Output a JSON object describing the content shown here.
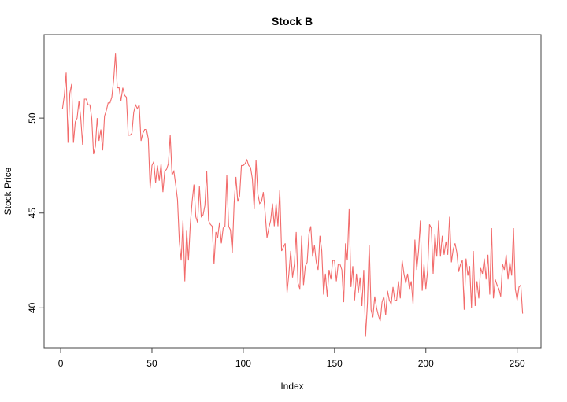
{
  "chart_data": {
    "type": "line",
    "title": "Stock B",
    "x_label": "Index",
    "y_label": "Stock Price",
    "color": "#f26b6b",
    "xlim": [
      -9.08,
      263.08
    ],
    "xticks": [
      0,
      50,
      100,
      150,
      200,
      250
    ],
    "ylim": [
      37.9,
      54.4
    ],
    "yticks": [
      40,
      45,
      50
    ],
    "x": [
      1,
      2,
      3,
      4,
      5,
      6,
      7,
      8,
      9,
      10,
      11,
      12,
      13,
      14,
      15,
      16,
      17,
      18,
      19,
      20,
      21,
      22,
      23,
      24,
      25,
      26,
      27,
      28,
      29,
      30,
      31,
      32,
      33,
      34,
      35,
      36,
      37,
      38,
      39,
      40,
      41,
      42,
      43,
      44,
      45,
      46,
      47,
      48,
      49,
      50,
      51,
      52,
      53,
      54,
      55,
      56,
      57,
      58,
      59,
      60,
      61,
      62,
      63,
      64,
      65,
      66,
      67,
      68,
      69,
      70,
      71,
      72,
      73,
      74,
      75,
      76,
      77,
      78,
      79,
      80,
      81,
      82,
      83,
      84,
      85,
      86,
      87,
      88,
      89,
      90,
      91,
      92,
      93,
      94,
      95,
      96,
      97,
      98,
      99,
      100,
      101,
      102,
      103,
      104,
      105,
      106,
      107,
      108,
      109,
      110,
      111,
      112,
      113,
      114,
      115,
      116,
      117,
      118,
      119,
      120,
      121,
      122,
      123,
      124,
      125,
      126,
      127,
      128,
      129,
      130,
      131,
      132,
      133,
      134,
      135,
      136,
      137,
      138,
      139,
      140,
      141,
      142,
      143,
      144,
      145,
      146,
      147,
      148,
      149,
      150,
      151,
      152,
      153,
      154,
      155,
      156,
      157,
      158,
      159,
      160,
      161,
      162,
      163,
      164,
      165,
      166,
      167,
      168,
      169,
      170,
      171,
      172,
      173,
      174,
      175,
      176,
      177,
      178,
      179,
      180,
      181,
      182,
      183,
      184,
      185,
      186,
      187,
      188,
      189,
      190,
      191,
      192,
      193,
      194,
      195,
      196,
      197,
      198,
      199,
      200,
      201,
      202,
      203,
      204,
      205,
      206,
      207,
      208,
      209,
      210,
      211,
      212,
      213,
      214,
      215,
      216,
      217,
      218,
      219,
      220,
      221,
      222,
      223,
      224,
      225,
      226,
      227,
      228,
      229,
      230,
      231,
      232,
      233,
      234,
      235,
      236,
      237,
      238,
      239,
      240,
      241,
      242,
      243,
      244,
      245,
      246,
      247,
      248,
      249,
      250,
      251,
      252,
      253
    ],
    "values": [
      50.5,
      51.2,
      52.4,
      48.7,
      51.3,
      51.8,
      48.7,
      49.8,
      50.0,
      50.9,
      50.0,
      48.6,
      51.0,
      51.0,
      50.7,
      50.7,
      50.0,
      48.1,
      48.5,
      50.0,
      48.8,
      49.4,
      48.3,
      50.1,
      50.4,
      50.8,
      50.8,
      51.1,
      52.0,
      53.4,
      51.6,
      51.6,
      50.9,
      51.6,
      51.2,
      51.1,
      49.1,
      49.1,
      49.2,
      50.3,
      50.7,
      50.5,
      50.7,
      48.8,
      49.2,
      49.4,
      49.4,
      48.9,
      46.3,
      47.5,
      47.7,
      46.6,
      47.5,
      46.7,
      47.6,
      46.1,
      47.2,
      47.3,
      47.6,
      49.1,
      47.0,
      47.2,
      46.5,
      45.7,
      43.5,
      42.5,
      44.6,
      41.4,
      44.1,
      42.5,
      44.4,
      45.6,
      46.5,
      44.8,
      44.5,
      46.4,
      44.8,
      44.9,
      45.4,
      47.2,
      44.6,
      44.4,
      44.3,
      42.3,
      44.0,
      43.7,
      44.5,
      43.4,
      44.2,
      44.3,
      47.0,
      44.3,
      44.1,
      42.9,
      45.5,
      46.9,
      45.6,
      45.9,
      47.5,
      47.5,
      47.6,
      47.8,
      47.5,
      47.4,
      46.8,
      45.2,
      47.8,
      46.0,
      45.5,
      45.6,
      46.1,
      45.0,
      43.7,
      44.2,
      44.6,
      45.5,
      44.3,
      45.5,
      44.3,
      46.2,
      43.0,
      43.2,
      43.4,
      40.8,
      41.8,
      43.0,
      41.6,
      42.3,
      44.0,
      41.3,
      41.0,
      43.8,
      41.2,
      42.2,
      42.4,
      43.9,
      44.3,
      42.7,
      43.3,
      42.4,
      42.0,
      43.8,
      43.0,
      40.7,
      41.8,
      40.6,
      42.0,
      41.5,
      42.5,
      42.5,
      41.4,
      42.3,
      42.3,
      42.0,
      40.3,
      43.4,
      42.5,
      45.2,
      41.1,
      42.2,
      40.4,
      41.8,
      40.8,
      41.6,
      40.1,
      42.0,
      38.5,
      40.2,
      43.3,
      39.9,
      39.5,
      40.6,
      40.0,
      39.6,
      39.3,
      40.3,
      40.6,
      39.6,
      40.9,
      40.4,
      40.2,
      41.1,
      40.4,
      40.4,
      41.4,
      40.5,
      42.5,
      41.8,
      41.3,
      41.8,
      41.0,
      41.4,
      40.2,
      43.6,
      42.0,
      43.0,
      44.6,
      40.9,
      42.3,
      41.0,
      42.0,
      44.4,
      44.2,
      41.8,
      43.9,
      42.7,
      44.6,
      42.7,
      43.8,
      42.8,
      43.5,
      42.8,
      44.8,
      42.4,
      43.1,
      43.4,
      42.9,
      41.9,
      42.3,
      42.5,
      39.9,
      42.6,
      41.7,
      42.2,
      40.0,
      43.0,
      40.1,
      41.4,
      40.5,
      42.1,
      41.8,
      42.6,
      41.5,
      42.8,
      40.7,
      44.2,
      40.5,
      41.5,
      41.2,
      41.0,
      40.6,
      42.3,
      42.0,
      42.8,
      41.5,
      42.4,
      41.7,
      44.2,
      41.0,
      40.4,
      41.1,
      41.2,
      39.7
    ]
  }
}
